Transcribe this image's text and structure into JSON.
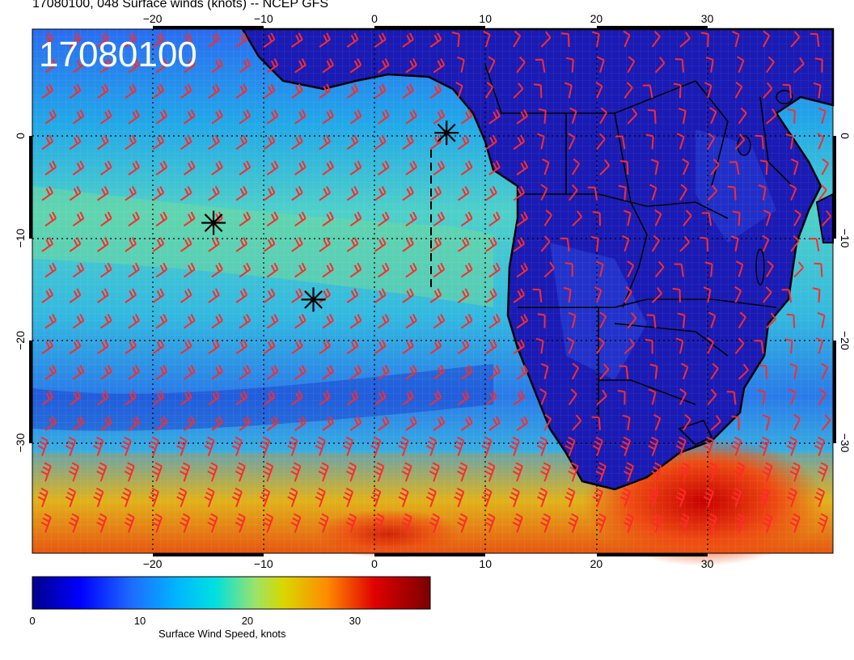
{
  "header": {
    "title": "17080100, 048 Surface winds (knots) -- NCEP GFS",
    "timestamp": "17080100"
  },
  "map": {
    "lon_ticks": [
      "−20",
      "−10",
      "0",
      "10",
      "20",
      "30"
    ],
    "lat_ticks": [
      "0",
      "−10",
      "−20",
      "−30"
    ],
    "barb_color": "#ff2a2a",
    "storm_markers": [
      {
        "lon": 6.5,
        "lat": 0.3
      },
      {
        "lon": -14.5,
        "lat": -8.5
      },
      {
        "lon": -5.5,
        "lat": -16.0
      }
    ]
  },
  "colorbar": {
    "label": "Surface Wind Speed, knots",
    "ticks": [
      "0",
      "10",
      "20",
      "30"
    ],
    "colors": [
      "#00008b",
      "#0000ff",
      "#1e6cff",
      "#00b4ff",
      "#00e0e0",
      "#9be36a",
      "#d8d800",
      "#ff8c00",
      "#e00000",
      "#7a0000"
    ]
  }
}
